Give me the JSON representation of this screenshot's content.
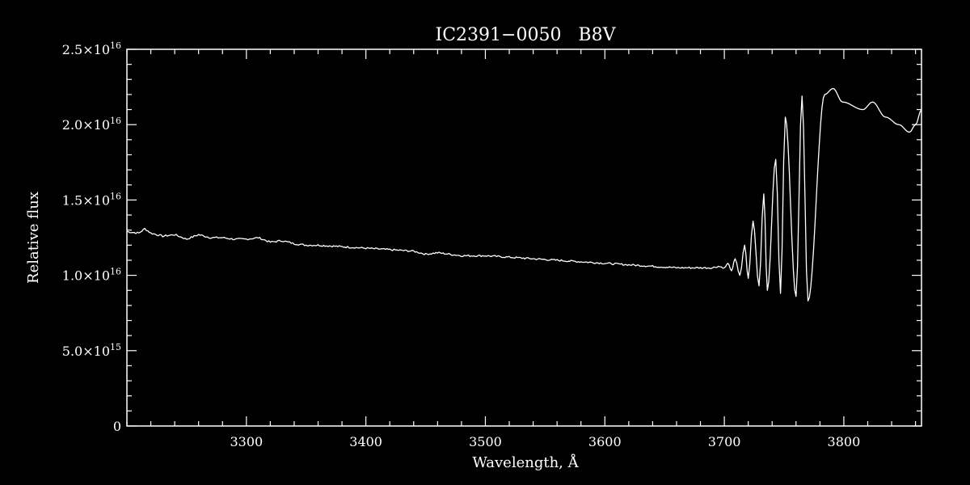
{
  "chart_data": {
    "type": "line",
    "title": "IC2391−0050   B8V",
    "xlabel": "Wavelength, Å",
    "ylabel": "Relative flux",
    "xlim": [
      3200,
      3865
    ],
    "ylim": [
      0,
      2.5e+16
    ],
    "x_ticks": [
      {
        "value": 3300,
        "label": "3300"
      },
      {
        "value": 3400,
        "label": "3400"
      },
      {
        "value": 3500,
        "label": "3500"
      },
      {
        "value": 3600,
        "label": "3600"
      },
      {
        "value": 3700,
        "label": "3700"
      },
      {
        "value": 3800,
        "label": "3800"
      }
    ],
    "x_minor_step": 20,
    "y_ticks": [
      {
        "value": 0,
        "mant": "0",
        "exp": ""
      },
      {
        "value": 5000000000000000.0,
        "mant": "5.0×10",
        "exp": "15"
      },
      {
        "value": 1e+16,
        "mant": "1.0×10",
        "exp": "16"
      },
      {
        "value": 1.5e+16,
        "mant": "1.5×10",
        "exp": "16"
      },
      {
        "value": 2e+16,
        "mant": "2.0×10",
        "exp": "16"
      },
      {
        "value": 2.5e+16,
        "mant": "2.5×10",
        "exp": "16"
      }
    ],
    "y_minor_step": 1000000000000000.0,
    "grid": false,
    "colors": {
      "background": "#000000",
      "foreground": "#ffffff",
      "line": "#ffffff"
    },
    "series": [
      {
        "x": [
          3200,
          3210,
          3215,
          3220,
          3225,
          3230,
          3240,
          3250,
          3260,
          3270,
          3280,
          3290,
          3300,
          3310,
          3320,
          3330,
          3340,
          3350,
          3360,
          3380,
          3400,
          3420,
          3440,
          3450,
          3460,
          3480,
          3500,
          3520,
          3540,
          3560,
          3580,
          3600,
          3620,
          3640,
          3660,
          3680,
          3690,
          3695,
          3700,
          3703,
          3706,
          3709,
          3713,
          3717,
          3720,
          3724,
          3729,
          3733,
          3736,
          3743,
          3747,
          3751,
          3760,
          3765,
          3770,
          3784,
          3791,
          3799,
          3816,
          3824,
          3835,
          3846,
          3855,
          3860,
          3865
        ],
        "y": [
          1.29e+16,
          1.28e+16,
          1.31e+16,
          1.28e+16,
          1.27e+16,
          1.26e+16,
          1.27e+16,
          1.24e+16,
          1.27e+16,
          1.25e+16,
          1.25e+16,
          1.24e+16,
          1.24e+16,
          1.25e+16,
          1.22e+16,
          1.23e+16,
          1.21e+16,
          1.2e+16,
          1.2e+16,
          1.19e+16,
          1.18e+16,
          1.17e+16,
          1.16e+16,
          1.14e+16,
          1.15e+16,
          1.13e+16,
          1.13e+16,
          1.12e+16,
          1.11e+16,
          1.1e+16,
          1.09e+16,
          1.08e+16,
          1.07e+16,
          1.06e+16,
          1.05e+16,
          1.05e+16,
          1.05e+16,
          1.06e+16,
          1.05e+16,
          1.08e+16,
          1.03e+16,
          1.11e+16,
          1e+16,
          1.2e+16,
          9800000000000000.0,
          1.36e+16,
          9300000000000000.0,
          1.54e+16,
          9000000000000000.0,
          1.77e+16,
          8800000000000000.0,
          2.05e+16,
          8600000000000000.0,
          2.19e+16,
          8300000000000000.0,
          2.2e+16,
          2.24e+16,
          2.15e+16,
          2.1e+16,
          2.15e+16,
          2.05e+16,
          2e+16,
          1.95e+16,
          2e+16,
          2.1e+16
        ]
      }
    ]
  }
}
